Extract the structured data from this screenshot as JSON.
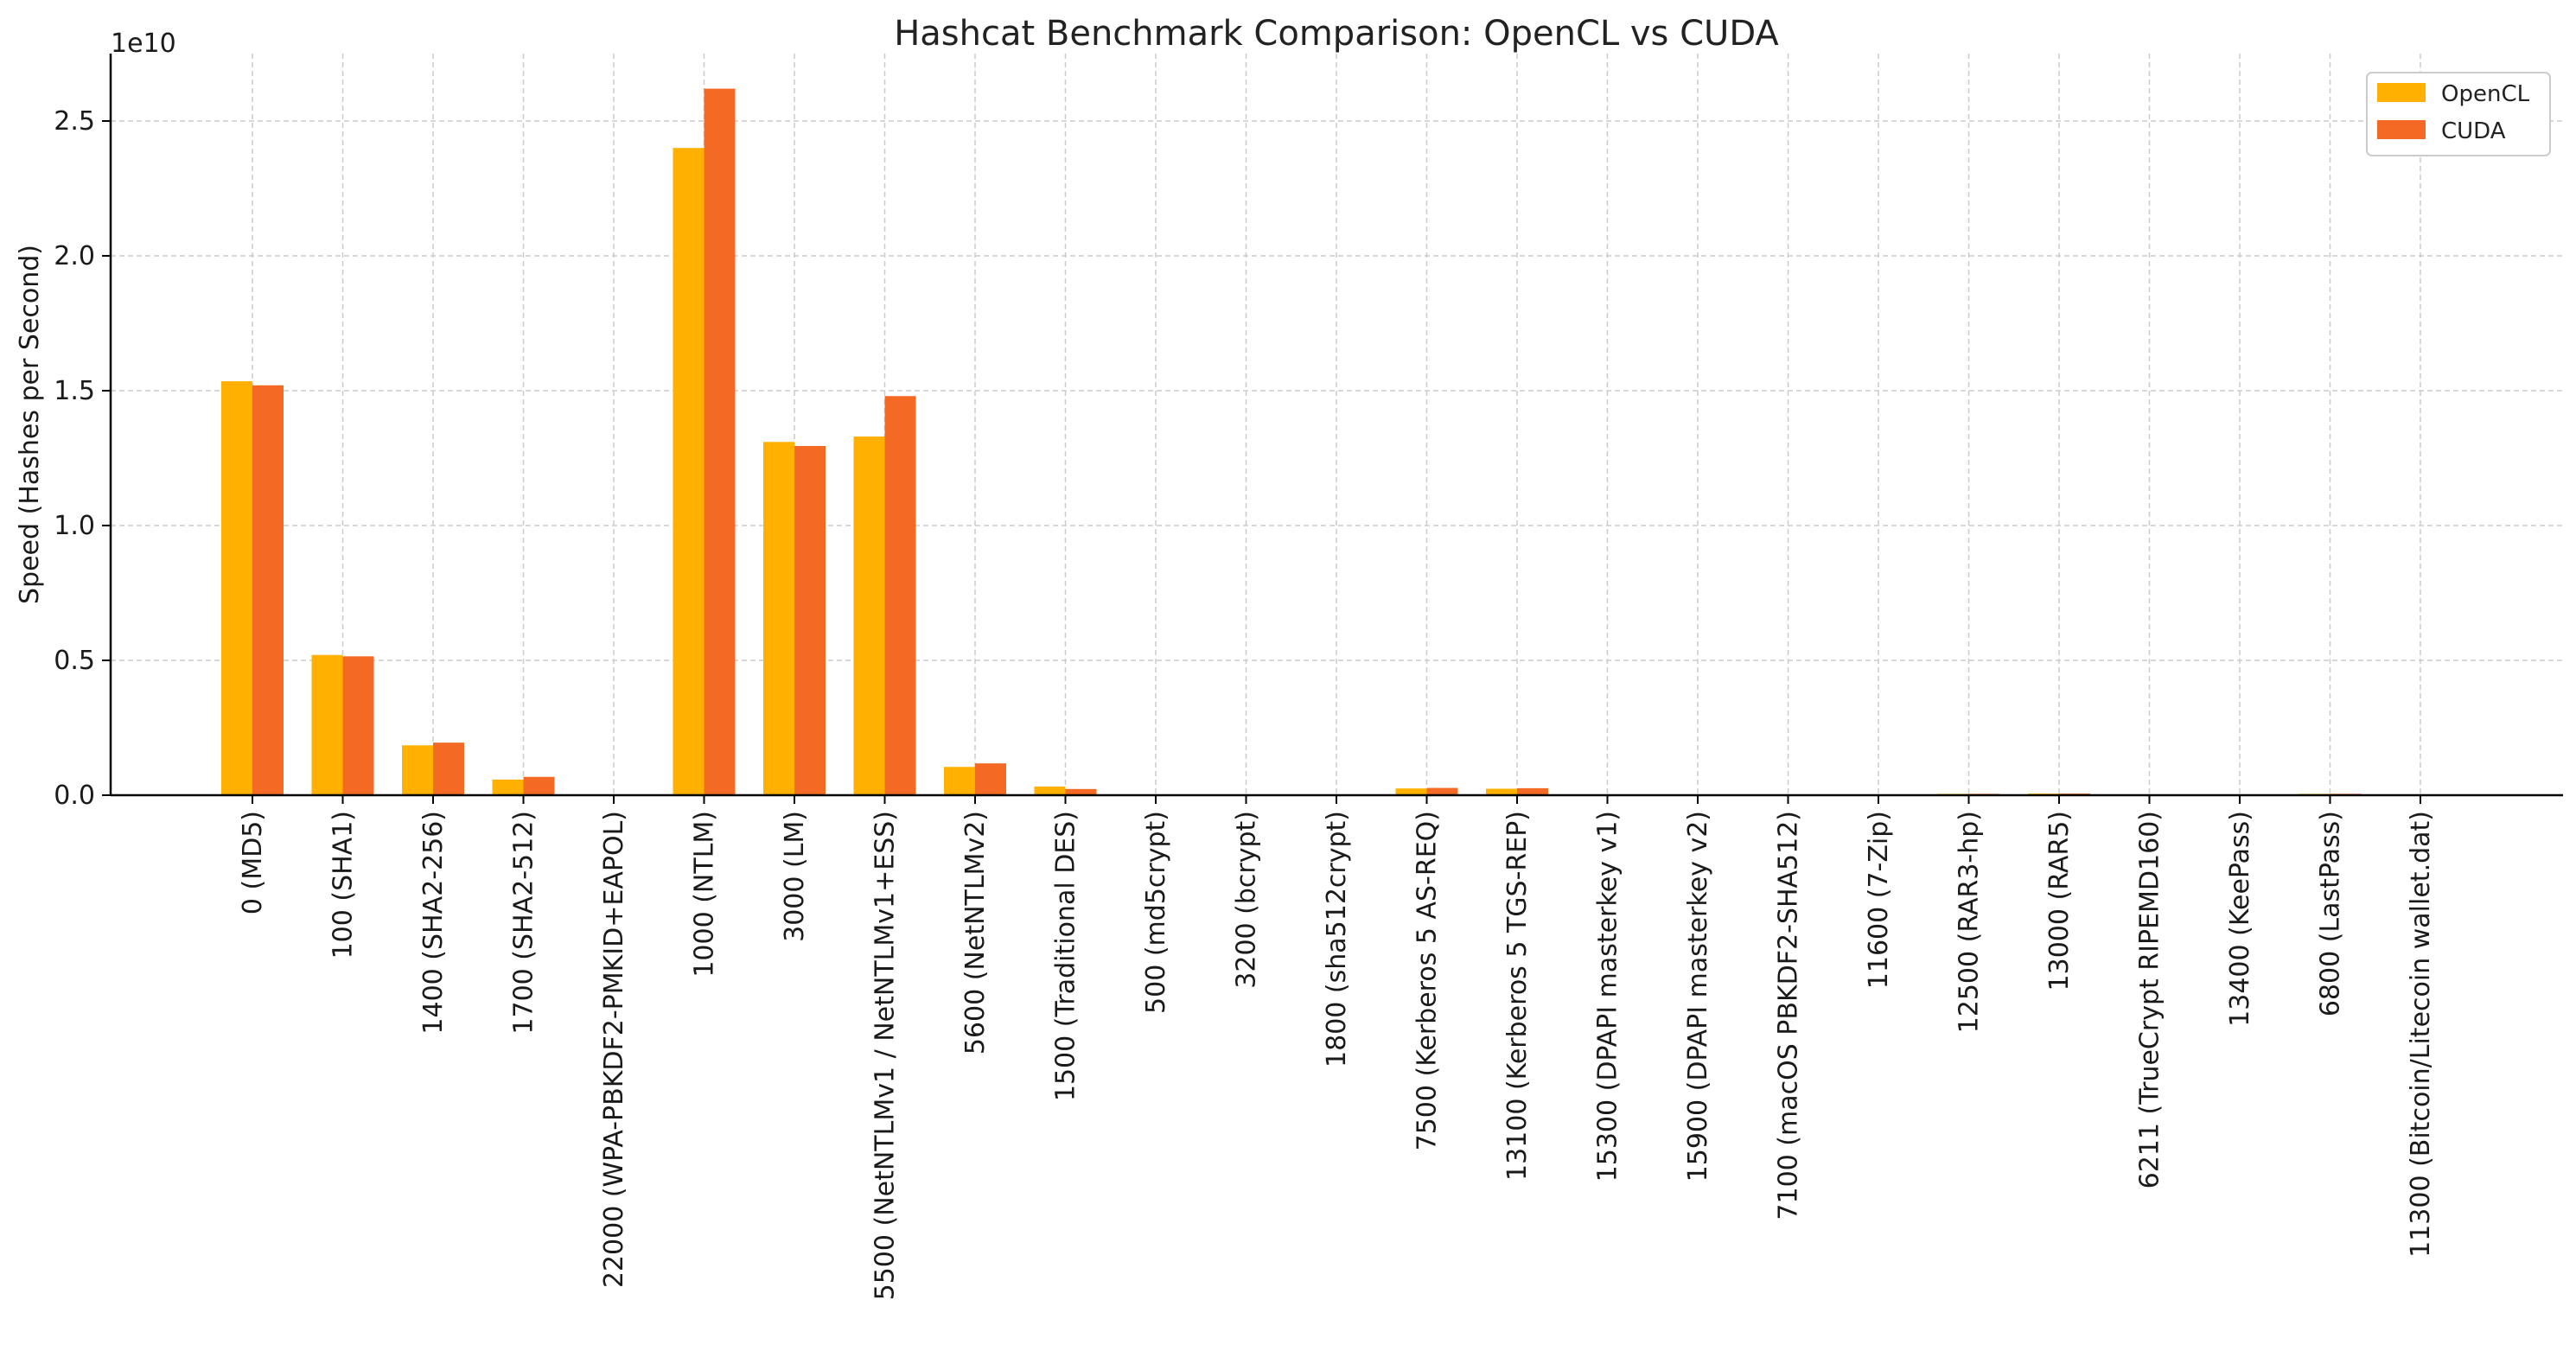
{
  "chart_data": {
    "type": "bar",
    "title": "Hashcat Benchmark Comparison: OpenCL vs CUDA",
    "xlabel": "",
    "ylabel": "Speed (Hashes per Second)",
    "offset_text": "1e10",
    "ylim": [
      0,
      27500000000
    ],
    "yticks": [
      0,
      5000000000,
      10000000000,
      15000000000,
      20000000000,
      25000000000
    ],
    "ytick_labels": [
      "0.0",
      "0.5",
      "1.0",
      "1.5",
      "2.0",
      "2.5"
    ],
    "grid": true,
    "legend_position": "top-right",
    "categories": [
      "0 (MD5)",
      "100 (SHA1)",
      "1400 (SHA2-256)",
      "1700 (SHA2-512)",
      "22000 (WPA-PBKDF2-PMKID+EAPOL)",
      "1000 (NTLM)",
      "3000 (LM)",
      "5500 (NetNTLMv1 / NetNTLMv1+ESS)",
      "5600 (NetNTLMv2)",
      "1500 (Traditional DES)",
      "500 (md5crypt)",
      "3200 (bcrypt)",
      "1800 (sha512crypt)",
      "7500 (Kerberos 5 AS-REQ)",
      "13100 (Kerberos 5 TGS-REP)",
      "15300 (DPAPI masterkey v1)",
      "15900 (DPAPI masterkey v2)",
      "7100 (macOS PBKDF2-SHA512)",
      "11600 (7-Zip)",
      "12500 (RAR3-hp)",
      "13000 (RAR5)",
      "6211 (TrueCrypt RIPEMD160)",
      "13400 (KeePass)",
      "6800 (LastPass)",
      "11300 (Bitcoin/Litecoin wallet.dat)"
    ],
    "series": [
      {
        "name": "OpenCL",
        "color": "#FFB000",
        "values": [
          15350000000,
          5200000000,
          1850000000,
          580000000,
          2000000,
          24000000000,
          13100000000,
          13300000000,
          1050000000,
          320000000,
          8000000,
          80000,
          200000,
          250000000,
          240000000,
          100000,
          50000,
          1000000,
          2000000,
          50000000,
          60000000,
          1000000,
          100000,
          50000000,
          100000
        ]
      },
      {
        "name": "CUDA",
        "color": "#F46A25",
        "values": [
          15200000000,
          5150000000,
          1950000000,
          680000000,
          2200000,
          26200000000,
          12950000000,
          14800000000,
          1180000000,
          230000000,
          9000000,
          90000,
          210000,
          270000000,
          260000000,
          110000,
          60000,
          1100000,
          2100000,
          52000000,
          62000000,
          1100000,
          110000,
          52000000,
          110000
        ]
      }
    ]
  }
}
